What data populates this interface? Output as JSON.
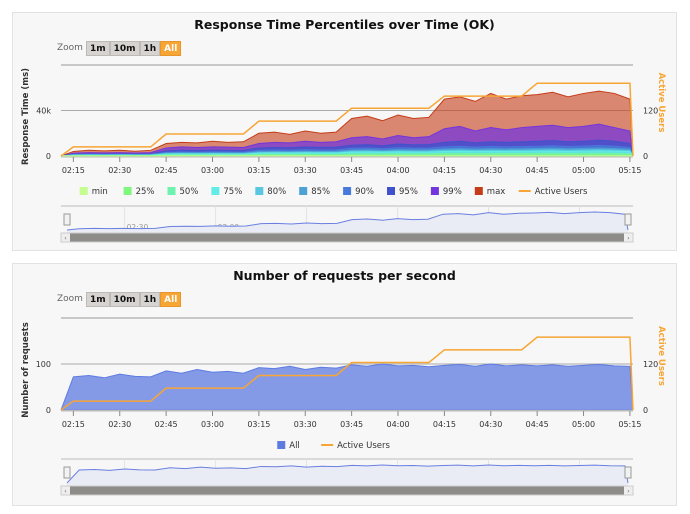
{
  "zoom": {
    "label": "Zoom",
    "buttons": [
      "1m",
      "10m",
      "1h",
      "All"
    ],
    "selected": "All"
  },
  "colors": {
    "min": "#c4fd90",
    "25%": "#7ff77f",
    "50%": "#6ff2ad",
    "75%": "#61ede6",
    "80%": "#58c7e0",
    "85%": "#4ea1d4",
    "90%": "#487ad9",
    "95%": "#3f52cc",
    "99%": "#7335dc",
    "max": "#c43c18",
    "active_users": "#f7a535",
    "all": "#5e7be2"
  },
  "chart_data": [
    {
      "type": "area",
      "title": "Response Time Percentiles over Time (OK)",
      "ylabel": "Response Time (ms)",
      "y2label": "Active Users",
      "ylim": [
        0,
        80000
      ],
      "y2lim": [
        0,
        240
      ],
      "yticks": [
        {
          "v": 0,
          "label": "0"
        },
        {
          "v": 40000,
          "label": "40k"
        }
      ],
      "y2ticks": [
        {
          "v": 0,
          "label": "0"
        },
        {
          "v": 120,
          "label": "120"
        }
      ],
      "xticks": [
        "02:15",
        "02:30",
        "02:45",
        "03:00",
        "03:15",
        "03:30",
        "03:45",
        "04:00",
        "04:15",
        "04:30",
        "04:45",
        "05:00",
        "05:15"
      ],
      "xlim": [
        "02:11",
        "05:16"
      ],
      "navigator_ticks": [
        "02:30",
        "03:00",
        "03:30",
        "04:00",
        "04:30",
        "05:00"
      ],
      "grid": true,
      "legend_placement": "bottom",
      "x": [
        "02:11",
        "02:15",
        "02:20",
        "02:25",
        "02:30",
        "02:35",
        "02:40",
        "02:45",
        "02:50",
        "02:55",
        "03:00",
        "03:05",
        "03:10",
        "03:15",
        "03:20",
        "03:25",
        "03:30",
        "03:35",
        "03:40",
        "03:45",
        "03:50",
        "03:55",
        "04:00",
        "04:05",
        "04:10",
        "04:15",
        "04:20",
        "04:25",
        "04:30",
        "04:35",
        "04:40",
        "04:45",
        "04:50",
        "04:55",
        "05:00",
        "05:05",
        "05:10",
        "05:15",
        "05:16"
      ],
      "series": [
        {
          "name": "min",
          "key": "min",
          "values": [
            0,
            50,
            50,
            50,
            50,
            50,
            50,
            80,
            80,
            80,
            80,
            80,
            80,
            100,
            100,
            100,
            100,
            100,
            100,
            120,
            120,
            120,
            120,
            120,
            120,
            150,
            150,
            150,
            150,
            150,
            150,
            150,
            150,
            150,
            150,
            150,
            150,
            150,
            0
          ]
        },
        {
          "name": "25%",
          "key": "25%",
          "values": [
            0,
            200,
            220,
            210,
            220,
            200,
            220,
            400,
            450,
            420,
            450,
            430,
            420,
            600,
            650,
            620,
            660,
            640,
            650,
            800,
            850,
            780,
            860,
            820,
            840,
            950,
            1000,
            920,
            980,
            950,
            970,
            1000,
            1050,
            980,
            1020,
            1060,
            1000,
            900,
            0
          ]
        },
        {
          "name": "50%",
          "key": "50%",
          "values": [
            0,
            400,
            450,
            420,
            450,
            400,
            450,
            900,
            1000,
            950,
            1000,
            950,
            950,
            1400,
            1500,
            1450,
            1500,
            1450,
            1500,
            1900,
            2000,
            1850,
            2000,
            1900,
            1950,
            2300,
            2400,
            2200,
            2350,
            2300,
            2350,
            2400,
            2500,
            2300,
            2450,
            2550,
            2400,
            2100,
            0
          ]
        },
        {
          "name": "75%",
          "key": "75%",
          "values": [
            0,
            700,
            750,
            700,
            750,
            700,
            750,
            1600,
            1800,
            1700,
            1800,
            1700,
            1700,
            2500,
            2600,
            2500,
            2700,
            2600,
            2600,
            3400,
            3500,
            3300,
            3600,
            3400,
            3500,
            4000,
            4200,
            3900,
            4100,
            4000,
            4100,
            4300,
            4400,
            4100,
            4300,
            4500,
            4300,
            3800,
            0
          ]
        },
        {
          "name": "80%",
          "key": "80%",
          "values": [
            0,
            800,
            900,
            850,
            900,
            800,
            900,
            2000,
            2200,
            2100,
            2200,
            2100,
            2100,
            3000,
            3200,
            3100,
            3300,
            3200,
            3200,
            4200,
            4300,
            4000,
            4400,
            4200,
            4300,
            5000,
            5200,
            4800,
            5100,
            5000,
            5100,
            5300,
            5500,
            5100,
            5400,
            5600,
            5300,
            4700,
            0
          ]
        },
        {
          "name": "85%",
          "key": "85%",
          "values": [
            0,
            1000,
            1100,
            1000,
            1100,
            1000,
            1100,
            2500,
            2700,
            2600,
            2800,
            2700,
            2600,
            3800,
            4000,
            3900,
            4200,
            4000,
            4100,
            5200,
            5400,
            5000,
            5500,
            5300,
            5400,
            6200,
            6500,
            6000,
            6400,
            6200,
            6300,
            6600,
            6900,
            6400,
            6700,
            7000,
            6600,
            5800,
            0
          ]
        },
        {
          "name": "90%",
          "key": "90%",
          "values": [
            0,
            1200,
            1400,
            1300,
            1400,
            1200,
            1400,
            3200,
            3500,
            3300,
            3600,
            3500,
            3400,
            5000,
            5300,
            5100,
            5500,
            5200,
            5400,
            6800,
            7000,
            6500,
            7200,
            6900,
            7000,
            8000,
            8500,
            7800,
            8300,
            8000,
            8200,
            8500,
            9000,
            8300,
            8700,
            9200,
            8600,
            7500,
            0
          ]
        },
        {
          "name": "95%",
          "key": "95%",
          "values": [
            0,
            1500,
            1800,
            1600,
            1800,
            1500,
            1800,
            4500,
            5000,
            4800,
            5200,
            5000,
            4800,
            7000,
            7500,
            7200,
            8000,
            7500,
            7800,
            9500,
            10000,
            9000,
            10500,
            9800,
            10000,
            12000,
            13000,
            11500,
            12500,
            12000,
            12500,
            13000,
            13500,
            12500,
            13000,
            14000,
            13000,
            11000,
            0
          ]
        },
        {
          "name": "99%",
          "key": "99%",
          "values": [
            0,
            2500,
            3000,
            2800,
            3000,
            2600,
            3000,
            7000,
            8000,
            7500,
            8000,
            7800,
            7500,
            11000,
            12000,
            11500,
            13000,
            12000,
            12500,
            16000,
            17000,
            15000,
            18000,
            16000,
            17000,
            24000,
            26000,
            22000,
            25000,
            23000,
            25000,
            26000,
            27000,
            25000,
            26000,
            28000,
            25000,
            22000,
            0
          ]
        },
        {
          "name": "max",
          "key": "max",
          "values": [
            0,
            4000,
            5000,
            4500,
            5000,
            4200,
            5000,
            11000,
            12000,
            11500,
            13000,
            12000,
            12500,
            20000,
            21000,
            19000,
            22000,
            20000,
            21000,
            33000,
            35000,
            31000,
            36000,
            33000,
            34000,
            50000,
            52000,
            48000,
            55000,
            50000,
            53000,
            54000,
            56000,
            52000,
            55000,
            57000,
            55000,
            50000,
            0
          ]
        }
      ],
      "users": {
        "name": "Active Users",
        "values": [
          0,
          24,
          24,
          24,
          24,
          24,
          24,
          58,
          58,
          58,
          58,
          58,
          58,
          92,
          92,
          92,
          92,
          92,
          92,
          126,
          126,
          126,
          126,
          126,
          126,
          158,
          158,
          158,
          158,
          158,
          158,
          192,
          192,
          192,
          192,
          192,
          192,
          192,
          0
        ]
      }
    },
    {
      "type": "area",
      "title": "Number of requests per second",
      "ylabel": "Number of requests",
      "y2label": "Active Users",
      "ylim": [
        0,
        200
      ],
      "y2lim": [
        0,
        240
      ],
      "yticks": [
        {
          "v": 0,
          "label": "0"
        },
        {
          "v": 100,
          "label": "100"
        }
      ],
      "y2ticks": [
        {
          "v": 0,
          "label": "0"
        },
        {
          "v": 120,
          "label": "120"
        }
      ],
      "xticks": [
        "02:15",
        "02:30",
        "02:45",
        "03:00",
        "03:15",
        "03:30",
        "03:45",
        "04:00",
        "04:15",
        "04:30",
        "04:45",
        "05:00",
        "05:15"
      ],
      "xlim": [
        "02:11",
        "05:16"
      ],
      "navigator_ticks": [
        "02:30",
        "03:00",
        "03:30",
        "04:00",
        "04:30",
        "05:00"
      ],
      "grid": true,
      "legend_placement": "bottom",
      "x": [
        "02:11",
        "02:15",
        "02:20",
        "02:25",
        "02:30",
        "02:35",
        "02:40",
        "02:45",
        "02:50",
        "02:55",
        "03:00",
        "03:05",
        "03:10",
        "03:15",
        "03:20",
        "03:25",
        "03:30",
        "03:35",
        "03:40",
        "03:45",
        "03:50",
        "03:55",
        "04:00",
        "04:05",
        "04:10",
        "04:15",
        "04:20",
        "04:25",
        "04:30",
        "04:35",
        "04:40",
        "04:45",
        "04:50",
        "04:55",
        "05:00",
        "05:05",
        "05:10",
        "05:15",
        "05:16"
      ],
      "series": [
        {
          "name": "All",
          "key": "all",
          "values": [
            0,
            72,
            75,
            70,
            78,
            73,
            72,
            85,
            80,
            88,
            82,
            84,
            80,
            92,
            90,
            95,
            88,
            93,
            91,
            98,
            95,
            100,
            96,
            97,
            94,
            97,
            99,
            95,
            100,
            96,
            98,
            96,
            98,
            95,
            97,
            99,
            96,
            95,
            0
          ]
        }
      ],
      "users": {
        "name": "Active Users",
        "values": [
          0,
          23,
          23,
          23,
          23,
          23,
          23,
          57,
          57,
          57,
          57,
          57,
          57,
          90,
          90,
          90,
          90,
          90,
          90,
          124,
          124,
          124,
          124,
          124,
          124,
          157,
          157,
          157,
          157,
          157,
          157,
          190,
          190,
          190,
          190,
          190,
          190,
          190,
          0
        ]
      }
    }
  ]
}
